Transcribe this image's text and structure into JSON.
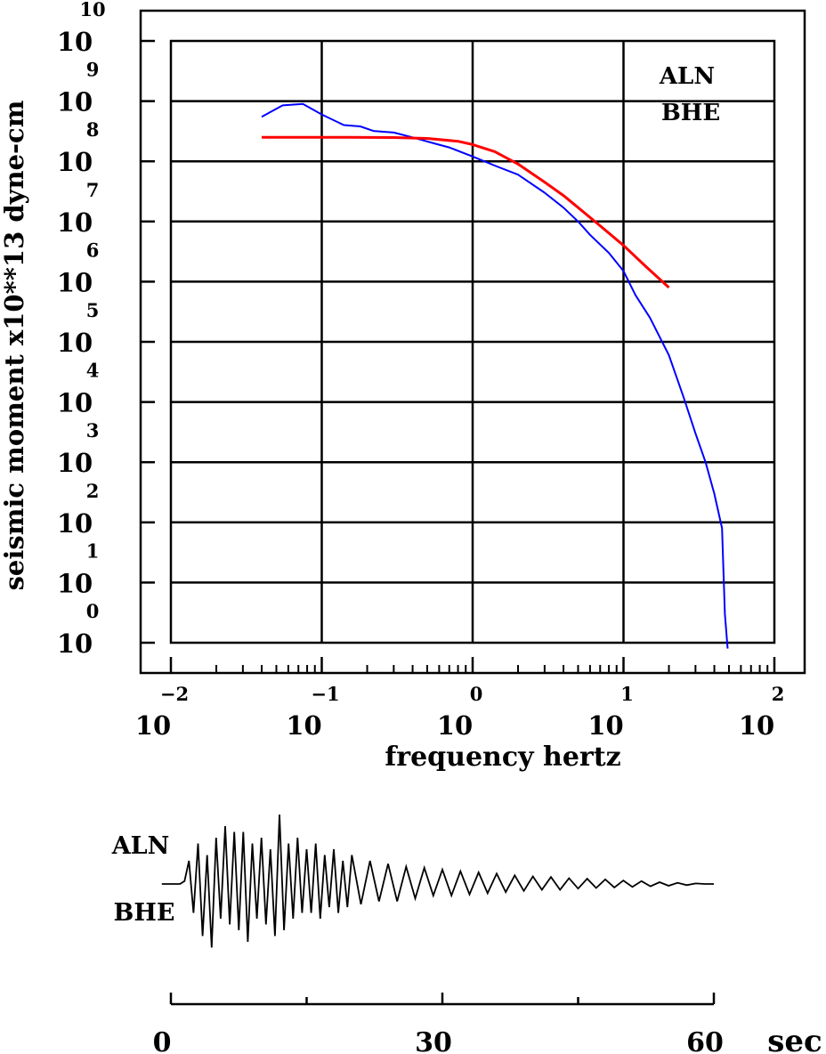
{
  "chart_data": [
    {
      "type": "line",
      "xscale": "log",
      "yscale": "log",
      "xlabel": "frequency hertz",
      "ylabel": "seismic moment x10**13 dyne-cm",
      "xlim": [
        0.01,
        100
      ],
      "ylim": [
        1,
        10000000000
      ],
      "x_tick_exponents": [
        -2,
        -1,
        0,
        1,
        2
      ],
      "y_tick_exponents": [
        0,
        1,
        2,
        3,
        4,
        5,
        6,
        7,
        8,
        9,
        10
      ],
      "tick_base": "10",
      "grid": true,
      "annotation": [
        "ALN",
        "BHE"
      ],
      "series": [
        {
          "color": "#0000ff",
          "x": [
            0.04,
            0.055,
            0.075,
            0.1,
            0.14,
            0.18,
            0.22,
            0.3,
            0.4,
            0.55,
            0.7,
            1.0,
            1.4,
            2.0,
            3.0,
            4.0,
            5.0,
            6.0,
            8.0,
            10.0,
            12.0,
            15.0,
            20.0,
            25.0,
            30.0,
            35.0,
            40.0,
            45.0,
            47.0,
            49.0
          ],
          "y": [
            550000000,
            850000000,
            900000000,
            600000000,
            400000000,
            380000000,
            320000000,
            300000000,
            250000000,
            200000000,
            170000000,
            120000000,
            85000000,
            60000000,
            30000000,
            17000000,
            10000000,
            6000000,
            3000000,
            1500000,
            600000,
            250000,
            60000,
            12000,
            3000,
            1000,
            300,
            80,
            3,
            0.8
          ]
        },
        {
          "color": "#ff0000",
          "x": [
            0.04,
            0.08,
            0.15,
            0.3,
            0.5,
            0.8,
            1.0,
            1.4,
            2.0,
            3.0,
            4.0,
            5.0,
            7.0,
            10.0,
            14.0,
            20.0
          ],
          "y": [
            250000000,
            250000000,
            250000000,
            248000000,
            240000000,
            215000000,
            190000000,
            145000000,
            90000000,
            45000000,
            27000000,
            17000000,
            8500000,
            4000000,
            1800000,
            800000
          ]
        }
      ]
    },
    {
      "type": "line",
      "label": [
        "ALN",
        "BHE"
      ],
      "xlim": [
        0,
        60
      ],
      "x_tick_labels": [
        "0",
        "30",
        "60"
      ],
      "x_unit": "sec",
      "series": [
        {
          "color": "#000000",
          "t": [
            -1,
            1,
            1.5,
            2,
            2.5,
            3,
            3.5,
            4,
            4.5,
            5,
            5.5,
            6,
            6.5,
            7,
            7.5,
            8,
            8.5,
            9,
            9.5,
            10,
            10.5,
            11,
            11.5,
            12,
            12.5,
            13,
            13.5,
            14,
            14.5,
            15,
            15.5,
            16,
            16.5,
            17,
            17.5,
            18,
            18.5,
            19,
            19.5,
            20,
            21,
            22,
            23,
            24,
            25,
            26,
            27,
            28,
            29,
            30,
            31,
            32,
            33,
            34,
            35,
            36,
            37,
            38,
            39,
            40,
            41,
            42,
            43,
            44,
            45,
            46,
            47,
            48,
            49,
            50,
            51,
            52,
            53,
            54,
            55,
            56,
            57,
            58,
            59,
            60
          ],
          "amp": [
            0,
            0,
            0.05,
            0.4,
            -0.5,
            0.7,
            -0.9,
            0.5,
            -1.1,
            0.8,
            -0.6,
            1.0,
            -0.7,
            0.9,
            -0.8,
            0.9,
            -1.0,
            0.7,
            -0.6,
            0.8,
            -0.7,
            0.6,
            -0.9,
            1.2,
            -0.8,
            0.7,
            -0.6,
            0.8,
            -0.5,
            0.6,
            -0.5,
            0.7,
            -0.6,
            0.5,
            -0.4,
            0.6,
            -0.5,
            0.4,
            -0.4,
            0.5,
            -0.35,
            0.4,
            -0.3,
            0.35,
            -0.3,
            0.3,
            -0.25,
            0.28,
            -0.2,
            0.25,
            -0.2,
            0.22,
            -0.18,
            0.2,
            -0.16,
            0.18,
            -0.14,
            0.15,
            -0.12,
            0.13,
            -0.1,
            0.12,
            -0.1,
            0.1,
            -0.08,
            0.09,
            -0.07,
            0.08,
            -0.06,
            0.06,
            -0.05,
            0.05,
            -0.04,
            0.03,
            -0.03,
            0.02,
            -0.02,
            0.01,
            0,
            0
          ]
        }
      ]
    }
  ]
}
